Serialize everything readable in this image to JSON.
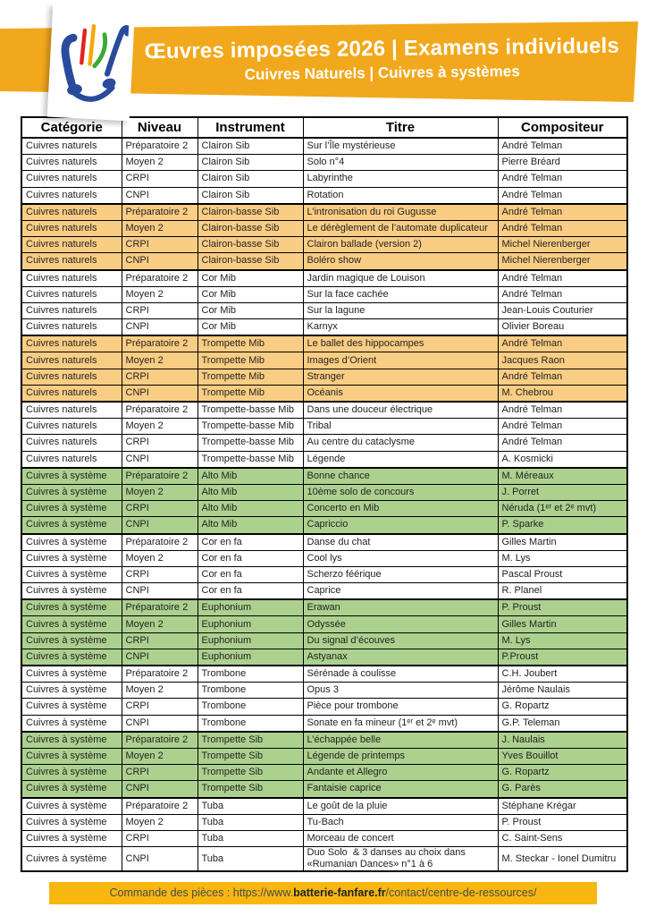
{
  "header": {
    "title": "Œuvres imposées 2026 | Examens individuels",
    "subtitle": "Cuivres Naturels | Cuivres à systèmes"
  },
  "table": {
    "columns": [
      "Catégorie",
      "Niveau",
      "Instrument",
      "Titre",
      "Compositeur"
    ],
    "column_keys": [
      "categorie",
      "niveau",
      "instrument",
      "titre",
      "compositeur"
    ],
    "rows": [
      {
        "cells": [
          "Cuivres naturels",
          "Préparatoire 2",
          "Clairon Sib",
          "Sur l’Île mystérieuse",
          "André Telman"
        ],
        "hl": "none"
      },
      {
        "cells": [
          "Cuivres naturels",
          "Moyen 2",
          "Clairon Sib",
          "Solo n°4",
          "Pierre Bréard"
        ],
        "hl": "none"
      },
      {
        "cells": [
          "Cuivres naturels",
          "CRPI",
          "Clairon Sib",
          "Labyrinthe",
          "André Telman"
        ],
        "hl": "none"
      },
      {
        "cells": [
          "Cuivres naturels",
          "CNPI",
          "Clairon Sib",
          "Rotation",
          "André Telman"
        ],
        "hl": "none"
      },
      {
        "cells": [
          "Cuivres naturels",
          "Préparatoire 2",
          "Clairon-basse Sib",
          "L’intronisation du roi Gugusse",
          "André Telman"
        ],
        "hl": "orange"
      },
      {
        "cells": [
          "Cuivres naturels",
          "Moyen 2",
          "Clairon-basse Sib",
          "Le dérèglement de l’automate duplicateur",
          "André Telman"
        ],
        "hl": "orange"
      },
      {
        "cells": [
          "Cuivres naturels",
          "CRPI",
          "Clairon-basse Sib",
          "Clairon ballade (version 2)",
          "Michel Nierenberger"
        ],
        "hl": "orange"
      },
      {
        "cells": [
          "Cuivres naturels",
          "CNPI",
          "Clairon-basse Sib",
          "Boléro show",
          "Michel Nierenberger"
        ],
        "hl": "orange"
      },
      {
        "cells": [
          "Cuivres naturels",
          "Préparatoire 2",
          "Cor Mib",
          "Jardin magique de Louison",
          "André Telman"
        ],
        "hl": "none"
      },
      {
        "cells": [
          "Cuivres naturels",
          "Moyen 2",
          "Cor Mib",
          "Sur la face cachée",
          "André Telman"
        ],
        "hl": "none"
      },
      {
        "cells": [
          "Cuivres naturels",
          "CRPI",
          "Cor Mib",
          "Sur la lagune",
          "Jean-Louis Couturier"
        ],
        "hl": "none"
      },
      {
        "cells": [
          "Cuivres naturels",
          "CNPI",
          "Cor Mib",
          "Karnyx",
          "Olivier Boreau"
        ],
        "hl": "none"
      },
      {
        "cells": [
          "Cuivres naturels",
          "Préparatoire 2",
          "Trompette Mib",
          "Le ballet des hippocampes",
          "André Telman"
        ],
        "hl": "orange"
      },
      {
        "cells": [
          "Cuivres naturels",
          "Moyen 2",
          "Trompette Mib",
          "Images d’Orient",
          "Jacques Raon"
        ],
        "hl": "orange"
      },
      {
        "cells": [
          "Cuivres naturels",
          "CRPI",
          "Trompette Mib",
          "Stranger",
          "André Telman"
        ],
        "hl": "orange"
      },
      {
        "cells": [
          "Cuivres naturels",
          "CNPI",
          "Trompette Mib",
          "Océanis",
          "M. Chebrou"
        ],
        "hl": "orange"
      },
      {
        "cells": [
          "Cuivres naturels",
          "Préparatoire 2",
          "Trompette-basse Mib",
          "Dans une douceur électrique",
          "André Telman"
        ],
        "hl": "none"
      },
      {
        "cells": [
          "Cuivres naturels",
          "Moyen 2",
          "Trompette-basse Mib",
          "Tribal",
          "André Telman"
        ],
        "hl": "none"
      },
      {
        "cells": [
          "Cuivres naturels",
          "CRPI",
          "Trompette-basse Mib",
          "Au centre du cataclysme",
          "André Telman"
        ],
        "hl": "none"
      },
      {
        "cells": [
          "Cuivres naturels",
          "CNPI",
          "Trompette-basse Mib",
          "Légende",
          "A. Kosmicki"
        ],
        "hl": "none"
      },
      {
        "cells": [
          "Cuivres à système",
          "Préparatoire 2",
          "Alto Mib",
          "Bonne chance",
          "M. Méreaux"
        ],
        "hl": "green"
      },
      {
        "cells": [
          "Cuivres à système",
          "Moyen 2",
          "Alto Mib",
          "10ème solo de concours",
          "J. Porret"
        ],
        "hl": "green"
      },
      {
        "cells": [
          "Cuivres à système",
          "CRPI",
          "Alto Mib",
          "Concerto en Mib",
          "Néruda (1ᵉʳ et 2ᵉ mvt)"
        ],
        "hl": "green"
      },
      {
        "cells": [
          "Cuivres à système",
          "CNPI",
          "Alto Mib",
          "Capriccio",
          "P. Sparke"
        ],
        "hl": "green"
      },
      {
        "cells": [
          "Cuivres à système",
          "Préparatoire 2",
          "Cor en fa",
          "Danse du chat",
          "Gilles Martin"
        ],
        "hl": "none"
      },
      {
        "cells": [
          "Cuivres à système",
          "Moyen 2",
          "Cor en fa",
          "Cool lys",
          "M. Lys"
        ],
        "hl": "none"
      },
      {
        "cells": [
          "Cuivres à système",
          "CRPI",
          "Cor en fa",
          "Scherzo féérique",
          "Pascal Proust"
        ],
        "hl": "none"
      },
      {
        "cells": [
          "Cuivres à système",
          "CNPI",
          "Cor en fa",
          "Caprice",
          "R. Planel"
        ],
        "hl": "none"
      },
      {
        "cells": [
          "Cuivres à système",
          "Préparatoire 2",
          "Euphonium",
          "Erawan",
          "P. Proust"
        ],
        "hl": "green"
      },
      {
        "cells": [
          "Cuivres à système",
          "Moyen 2",
          "Euphonium",
          "Odyssée",
          "Gilles Martin"
        ],
        "hl": "green"
      },
      {
        "cells": [
          "Cuivres à système",
          "CRPI",
          "Euphonium",
          "Du signal d’écouves",
          "M. Lys"
        ],
        "hl": "green"
      },
      {
        "cells": [
          "Cuivres à système",
          "CNPI",
          "Euphonium",
          "Astyanax",
          "P.Proust"
        ],
        "hl": "green"
      },
      {
        "cells": [
          "Cuivres à système",
          "Préparatoire 2",
          "Trombone",
          "Sérénade à coulisse",
          "C.H. Joubert"
        ],
        "hl": "none"
      },
      {
        "cells": [
          "Cuivres à système",
          "Moyen 2",
          "Trombone",
          "Opus 3",
          "Jérôme Naulais"
        ],
        "hl": "none"
      },
      {
        "cells": [
          "Cuivres à système",
          "CRPI",
          "Trombone",
          "Pièce pour trombone",
          "G. Ropartz"
        ],
        "hl": "none"
      },
      {
        "cells": [
          "Cuivres à système",
          "CNPI",
          "Trombone",
          "Sonate en fa mineur (1ᵉʳ et 2ᵉ mvt)",
          "G.P. Teleman"
        ],
        "hl": "none"
      },
      {
        "cells": [
          "Cuivres à système",
          "Préparatoire 2",
          "Trompette Sib",
          "L’échappée belle",
          "J. Naulais"
        ],
        "hl": "green"
      },
      {
        "cells": [
          "Cuivres à système",
          "Moyen 2",
          "Trompette Sib",
          "Légende de printemps",
          "Yves Bouillot"
        ],
        "hl": "green"
      },
      {
        "cells": [
          "Cuivres à système",
          "CRPI",
          "Trompette Sib",
          "Andante et Allegro",
          "G. Ropartz"
        ],
        "hl": "green"
      },
      {
        "cells": [
          "Cuivres à système",
          "CNPI",
          "Trompette Sib",
          "Fantaisie caprice",
          "G. Parès"
        ],
        "hl": "green"
      },
      {
        "cells": [
          "Cuivres à système",
          "Préparatoire 2",
          "Tuba",
          "Le goût de la pluie",
          "Stéphane Krégar"
        ],
        "hl": "none"
      },
      {
        "cells": [
          "Cuivres à système",
          "Moyen 2",
          "Tuba",
          "Tu-Bach",
          "P. Proust"
        ],
        "hl": "none"
      },
      {
        "cells": [
          "Cuivres à système",
          "CRPI",
          "Tuba",
          "Morceau de concert",
          "C. Saint-Sens"
        ],
        "hl": "none"
      },
      {
        "cells": [
          "Cuivres à système",
          "CNPI",
          "Tuba",
          "Duo Solo  & 3 danses au choix dans\n«Rumanian Dances» n°1 à 6",
          "M. Steckar - Ionel Dumitru"
        ],
        "hl": "none"
      }
    ]
  },
  "footer": {
    "prefix": "Commande des pièces : https://www.",
    "domain": "batterie-fanfare.fr",
    "suffix": "/contact/centre-de-ressources/"
  },
  "colors": {
    "banner": "#F2A81C",
    "footer_bar": "#F8B710",
    "row_orange": "#FACD84",
    "row_green": "#ACD18F",
    "border": "#000000",
    "logo_blue": "#2A4B9C",
    "logo_red": "#E1251B",
    "logo_yellow": "#F6A800",
    "logo_green": "#3AAA35"
  }
}
